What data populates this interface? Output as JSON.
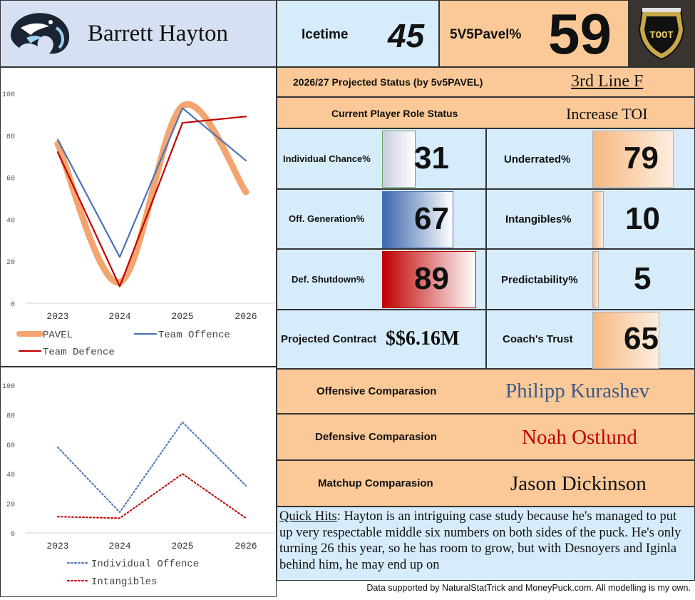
{
  "header": {
    "player_name": "Barrett Hayton",
    "icetime_label": "Icetime",
    "icetime_value": "45",
    "pavel_label": "5V5Pavel%",
    "pavel_value": "59"
  },
  "projection": {
    "label": "2026/27 Projected Status (by 5v5PAVEL)",
    "value": "3rd Line F"
  },
  "role": {
    "label": "Current Player Role Status",
    "value": "Increase TOI"
  },
  "metrics": {
    "individual_chance": {
      "label": "Individual Chance%",
      "value": "31",
      "level": 31
    },
    "off_generation": {
      "label": "Off. Generation%",
      "value": "67",
      "level": 67
    },
    "def_shutdown": {
      "label": "Def. Shutdown%",
      "value": "89",
      "level": 89
    },
    "underrated": {
      "label": "Underrated%",
      "value": "79",
      "level": 79
    },
    "intangibles": {
      "label": "Intangibles%",
      "value": "10",
      "level": 10
    },
    "predictability": {
      "label": "Predictability%",
      "value": "5",
      "level": 5
    },
    "coaches_trust": {
      "label": "Coach's Trust",
      "value": "65",
      "level": 65
    },
    "contract": {
      "label": "Projected Contract",
      "value": "$$6.16M"
    }
  },
  "comparisons": {
    "offensive": {
      "label": "Offensive Comparasion",
      "value": "Philipp Kurashev",
      "color": "#3a5a8c"
    },
    "defensive": {
      "label": "Defensive Comparasion",
      "value": "Noah Ostlund",
      "color": "#c00000"
    },
    "matchup": {
      "label": "Matchup Comparasion",
      "value": "Jason Dickinson",
      "color": "#111111"
    }
  },
  "quick_hits": {
    "label": "Quick Hits",
    "text": ": Hayton is an intriguing case study because he's managed to put up very respectable middle six numbers on both sides of the puck. He's only turning 26 this year, so he has room to grow, but with Desnoyers and Iginla behind him, he may end up on"
  },
  "footer": "Data supported by NaturalStatTrick and MoneyPuck.com. All modelling is my own.",
  "colors": {
    "light_blue": "#d6ecfb",
    "orange": "#fbc997",
    "pavel": "#f4a56f",
    "team_offence": "#4a72b8",
    "team_defence": "#c00000",
    "individual_offence": "#4a72b8",
    "intangibles": "#c00000"
  },
  "icons": {
    "team_logo": "mammoth-logo-icon",
    "league_logo": "league-shield-logo-icon"
  },
  "chart_data": [
    {
      "type": "line",
      "categories": [
        "2023",
        "2024",
        "2025",
        "2026"
      ],
      "ylim": [
        0,
        100
      ],
      "yticks": [
        "0",
        "20",
        "40",
        "60",
        "80",
        "100"
      ],
      "legend_position": "bottom",
      "series": [
        {
          "name": "PAVEL",
          "values": [
            76,
            10,
            94,
            53
          ],
          "color": "#f4a56f"
        },
        {
          "name": "Team Offence",
          "values": [
            78,
            22,
            93,
            68
          ],
          "color": "#4a72b8"
        },
        {
          "name": "Team Defence",
          "values": [
            72,
            8,
            86,
            89
          ],
          "color": "#c00000"
        }
      ]
    },
    {
      "type": "line",
      "categories": [
        "2023",
        "2024",
        "2025",
        "2026"
      ],
      "ylim": [
        0,
        100
      ],
      "yticks": [
        "0",
        "20",
        "40",
        "60",
        "80",
        "100"
      ],
      "legend_position": "bottom",
      "series": [
        {
          "name": "Individual Offence",
          "values": [
            58,
            14,
            75,
            32
          ],
          "color": "#4a72b8"
        },
        {
          "name": "Intangibles",
          "values": [
            11,
            10,
            40,
            10
          ],
          "color": "#c00000"
        }
      ]
    }
  ]
}
